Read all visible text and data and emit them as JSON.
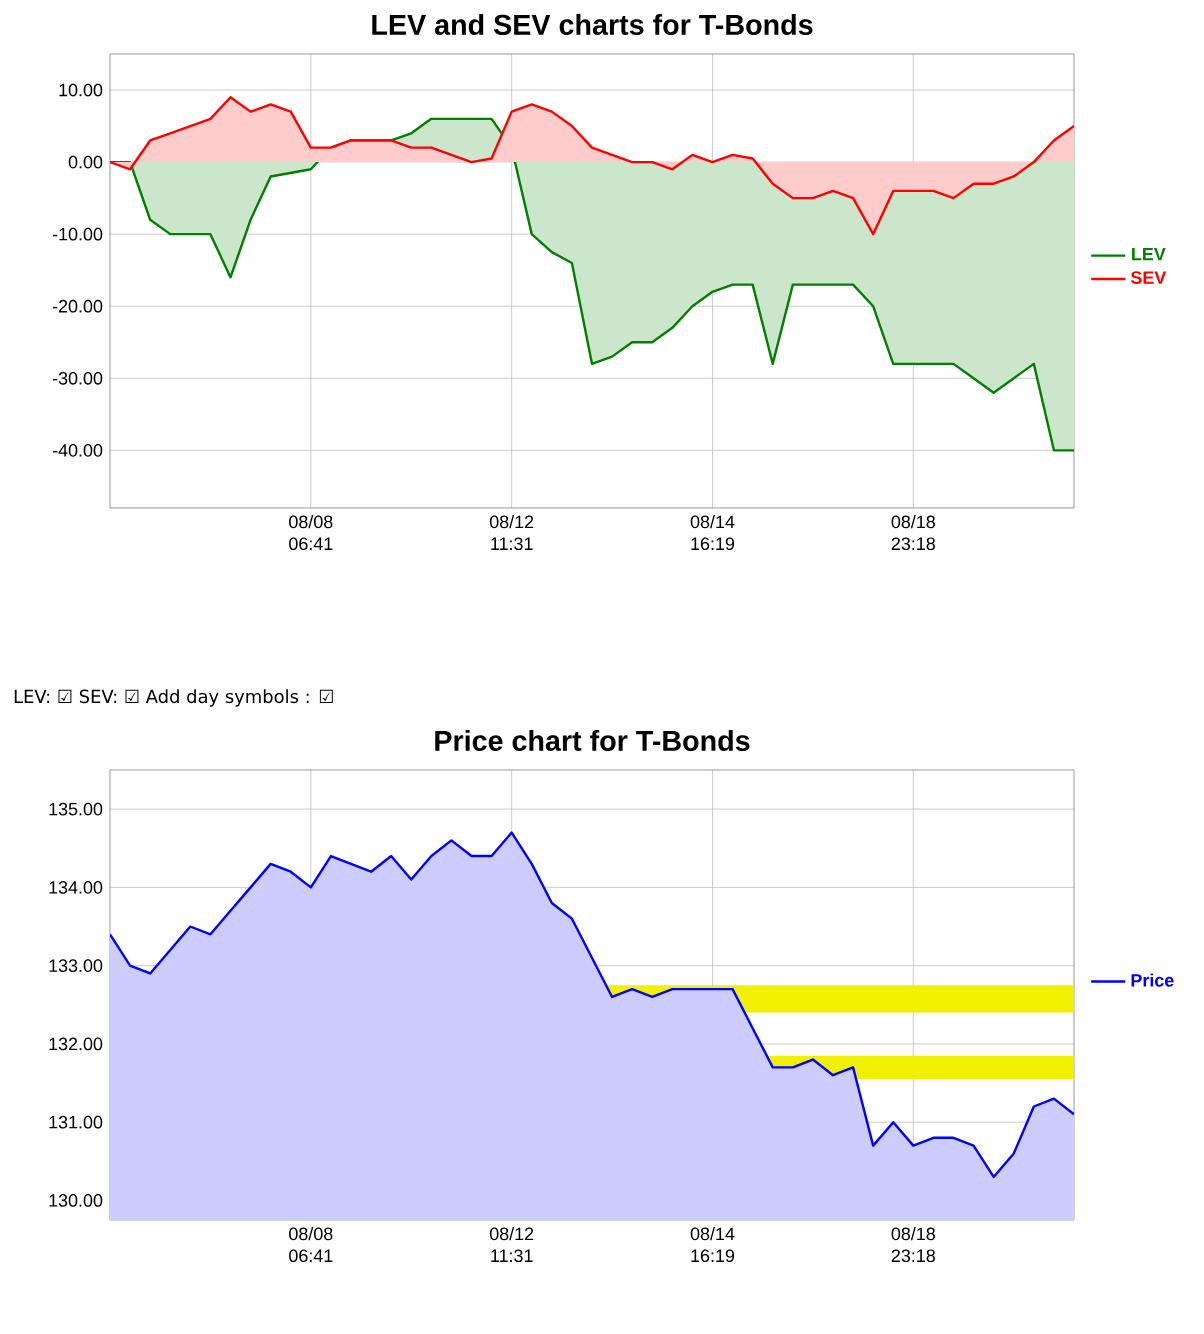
{
  "chart_data": [
    {
      "type": "area",
      "title": "LEV and SEV charts for T-Bonds",
      "ylim": [
        -48,
        15
      ],
      "categories": [
        null,
        null,
        null,
        null,
        null,
        null,
        null,
        null,
        null,
        null,
        "08/08 06:41",
        null,
        null,
        null,
        null,
        null,
        null,
        null,
        null,
        null,
        "08/12 11:31",
        null,
        null,
        null,
        null,
        null,
        null,
        null,
        null,
        null,
        "08/14 16:19",
        null,
        null,
        null,
        null,
        null,
        null,
        null,
        null,
        null,
        "08/18 23:18",
        null,
        null,
        null,
        null,
        null,
        null,
        null,
        null
      ],
      "yticks": [
        {
          "value": -40,
          "label": "-40.00"
        },
        {
          "value": -30,
          "label": "-30.00"
        },
        {
          "value": -20,
          "label": "-20.00"
        },
        {
          "value": -10,
          "label": "-10.00"
        },
        {
          "value": 0,
          "label": "0.00"
        },
        {
          "value": 10,
          "label": "10.00"
        }
      ],
      "grid": true,
      "legend": "right",
      "annotations": [
        "LEV: ☑ SEV: ☑ Add day symbols : ☑"
      ],
      "series": [
        {
          "name": "LEV",
          "color": "#008000",
          "values": [
            0,
            0,
            -8,
            -10,
            -10,
            -10,
            -16,
            -8,
            -2,
            -1.5,
            -1,
            2,
            3,
            3,
            3,
            4,
            6,
            6,
            6,
            6,
            2,
            -10,
            -12.5,
            -14,
            -28,
            -27,
            -25,
            -25,
            -23,
            -20,
            -18,
            -17,
            -17,
            -28,
            -17,
            -17,
            -17,
            -17,
            -20,
            -28,
            -28,
            -28,
            -28,
            -30,
            -32,
            -30,
            -28,
            -40,
            -40
          ]
        },
        {
          "name": "SEV",
          "color": "#ff0000",
          "values": [
            0,
            -1,
            3,
            4,
            5,
            6,
            9,
            7,
            8,
            7,
            2,
            2,
            3,
            3,
            3,
            2,
            2,
            1,
            0,
            0.5,
            7,
            8,
            7,
            5,
            2,
            1,
            0,
            0,
            -1,
            1,
            0,
            1,
            0.5,
            -3,
            -5,
            -5,
            -4,
            -5,
            -10,
            -4,
            -4,
            -4,
            -5,
            -3,
            -3,
            -2,
            0,
            3,
            5
          ]
        }
      ]
    },
    {
      "type": "area",
      "title": "Price chart for T-Bonds",
      "ylim": [
        129.75,
        135.5
      ],
      "categories": [
        null,
        null,
        null,
        null,
        null,
        null,
        null,
        null,
        null,
        null,
        "08/08 06:41",
        null,
        null,
        null,
        null,
        null,
        null,
        null,
        null,
        null,
        "08/12 11:31",
        null,
        null,
        null,
        null,
        null,
        null,
        null,
        null,
        null,
        "08/14 16:19",
        null,
        null,
        null,
        null,
        null,
        null,
        null,
        null,
        null,
        "08/18 23:18",
        null,
        null,
        null,
        null,
        null,
        null,
        null,
        null
      ],
      "yticks": [
        {
          "value": 130,
          "label": "130.00"
        },
        {
          "value": 131,
          "label": "131.00"
        },
        {
          "value": 132,
          "label": "132.00"
        },
        {
          "value": 133,
          "label": "133.00"
        },
        {
          "value": 134,
          "label": "134.00"
        },
        {
          "value": 135,
          "label": "135.00"
        }
      ],
      "grid": true,
      "legend": "right",
      "bands": [
        {
          "axis": "y",
          "from": 132.4,
          "to": 132.75,
          "color": "#f0f000"
        },
        {
          "axis": "y",
          "from": 131.55,
          "to": 131.85,
          "color": "#f0f000"
        }
      ],
      "series": [
        {
          "name": "Price",
          "color": "#0000ff",
          "values": [
            133.4,
            133.0,
            132.9,
            133.2,
            133.5,
            133.4,
            133.7,
            134.0,
            134.3,
            134.2,
            134.0,
            134.4,
            134.3,
            134.2,
            134.4,
            134.1,
            134.4,
            134.6,
            134.4,
            134.4,
            134.7,
            134.3,
            133.8,
            133.6,
            133.1,
            132.6,
            132.7,
            132.6,
            132.7,
            132.7,
            132.7,
            132.7,
            132.2,
            131.7,
            131.7,
            131.8,
            131.6,
            131.7,
            130.7,
            131.0,
            130.7,
            130.8,
            130.8,
            130.7,
            130.3,
            130.6,
            131.2,
            131.3,
            131.1
          ]
        }
      ]
    }
  ]
}
